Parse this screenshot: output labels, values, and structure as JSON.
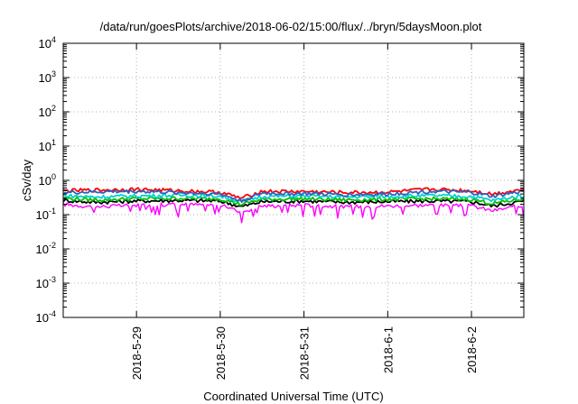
{
  "chart_data": {
    "type": "line",
    "title": "/data/run/goesPlots/archive/2018-06-02/15:00/flux/../bryn/5daysMoon.plot",
    "xlabel": "Coordinated Universal Time (UTC)",
    "ylabel": "cSv/day",
    "y_scale": "log",
    "ylim": [
      0.0001,
      10000
    ],
    "xlim": [
      "2018-05-28 03:00",
      "2018-06-02 15:00"
    ],
    "y_ticks": [
      {
        "value": 0.0001,
        "base": "10",
        "exp": "-4"
      },
      {
        "value": 0.001,
        "base": "10",
        "exp": "-3"
      },
      {
        "value": 0.01,
        "base": "10",
        "exp": "-2"
      },
      {
        "value": 0.1,
        "base": "10",
        "exp": "-1"
      },
      {
        "value": 1,
        "base": "10",
        "exp": "0"
      },
      {
        "value": 10,
        "base": "10",
        "exp": "1"
      },
      {
        "value": 100,
        "base": "10",
        "exp": "2"
      },
      {
        "value": 1000,
        "base": "10",
        "exp": "3"
      },
      {
        "value": 10000,
        "base": "10",
        "exp": "4"
      }
    ],
    "x_ticks": [
      "2018-5-29",
      "2018-5-30",
      "2018-5-31",
      "2018-6-1",
      "2018-6-2"
    ],
    "grid": true,
    "series": [
      {
        "color": "#ff00ff",
        "base": 0.2,
        "x": [
          "2018-05-28 03:00",
          "2018-05-28 12:00",
          "2018-05-29 00:00",
          "2018-05-29 12:00",
          "2018-05-30 00:00",
          "2018-05-30 06:00",
          "2018-05-30 12:00",
          "2018-05-31 00:00",
          "2018-05-31 12:00",
          "2018-06-01 00:00",
          "2018-06-01 12:00",
          "2018-06-02 00:00",
          "2018-06-02 06:00",
          "2018-06-02 15:00"
        ],
        "y": [
          0.2,
          0.17,
          0.19,
          0.2,
          0.19,
          0.12,
          0.18,
          0.19,
          0.17,
          0.18,
          0.19,
          0.18,
          0.13,
          0.19
        ]
      },
      {
        "color": "#000000",
        "base": 0.26,
        "x": [
          "2018-05-28 03:00",
          "2018-05-28 12:00",
          "2018-05-29 00:00",
          "2018-05-29 12:00",
          "2018-05-30 00:00",
          "2018-05-30 06:00",
          "2018-05-30 12:00",
          "2018-05-31 00:00",
          "2018-05-31 12:00",
          "2018-06-01 00:00",
          "2018-06-01 12:00",
          "2018-06-02 00:00",
          "2018-06-02 06:00",
          "2018-06-02 15:00"
        ],
        "y": [
          0.26,
          0.23,
          0.25,
          0.26,
          0.25,
          0.17,
          0.24,
          0.25,
          0.23,
          0.24,
          0.25,
          0.24,
          0.18,
          0.25
        ]
      },
      {
        "color": "#00c000",
        "base": 0.3,
        "x": [
          "2018-05-28 03:00",
          "2018-05-28 12:00",
          "2018-05-29 00:00",
          "2018-05-29 12:00",
          "2018-05-30 00:00",
          "2018-05-30 06:00",
          "2018-05-30 12:00",
          "2018-05-31 00:00",
          "2018-05-31 12:00",
          "2018-06-01 00:00",
          "2018-06-01 12:00",
          "2018-06-02 00:00",
          "2018-06-02 06:00",
          "2018-06-02 15:00"
        ],
        "y": [
          0.3,
          0.27,
          0.29,
          0.3,
          0.29,
          0.2,
          0.28,
          0.29,
          0.27,
          0.28,
          0.29,
          0.28,
          0.21,
          0.29
        ]
      },
      {
        "color": "#00d0d0",
        "base": 0.36,
        "x": [
          "2018-05-28 03:00",
          "2018-05-28 12:00",
          "2018-05-29 00:00",
          "2018-05-29 12:00",
          "2018-05-30 00:00",
          "2018-05-30 06:00",
          "2018-05-30 12:00",
          "2018-05-31 00:00",
          "2018-05-31 12:00",
          "2018-06-01 00:00",
          "2018-06-01 12:00",
          "2018-06-02 00:00",
          "2018-06-02 06:00",
          "2018-06-02 15:00"
        ],
        "y": [
          0.36,
          0.33,
          0.35,
          0.37,
          0.35,
          0.24,
          0.34,
          0.35,
          0.33,
          0.34,
          0.36,
          0.34,
          0.26,
          0.36
        ]
      },
      {
        "color": "#ff0000",
        "base": 0.5,
        "x": [
          "2018-05-28 03:00",
          "2018-05-28 12:00",
          "2018-05-29 00:00",
          "2018-05-29 12:00",
          "2018-05-30 00:00",
          "2018-05-30 06:00",
          "2018-05-30 12:00",
          "2018-05-31 00:00",
          "2018-05-31 12:00",
          "2018-06-01 00:00",
          "2018-06-01 12:00",
          "2018-06-02 00:00",
          "2018-06-02 06:00",
          "2018-06-02 15:00"
        ],
        "y": [
          0.5,
          0.52,
          0.55,
          0.5,
          0.45,
          0.3,
          0.48,
          0.47,
          0.44,
          0.45,
          0.55,
          0.5,
          0.4,
          0.55
        ]
      },
      {
        "color": "#3060c0",
        "base": 0.44,
        "x": [
          "2018-05-28 03:00",
          "2018-05-28 12:00",
          "2018-05-29 00:00",
          "2018-05-29 12:00",
          "2018-05-30 00:00",
          "2018-05-30 06:00",
          "2018-05-30 12:00",
          "2018-05-31 00:00",
          "2018-05-31 12:00",
          "2018-06-01 00:00",
          "2018-06-01 12:00",
          "2018-06-02 00:00",
          "2018-06-02 06:00",
          "2018-06-02 15:00"
        ],
        "y": [
          0.44,
          0.46,
          0.48,
          0.44,
          0.4,
          0.25,
          0.42,
          0.41,
          0.38,
          0.4,
          0.48,
          0.44,
          0.34,
          0.48
        ]
      }
    ]
  }
}
